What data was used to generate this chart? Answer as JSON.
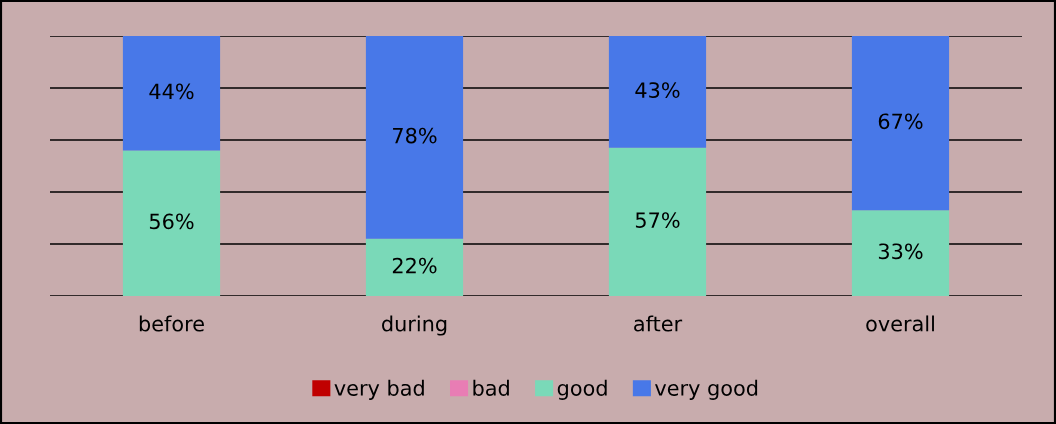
{
  "chart_data": {
    "type": "bar",
    "stacked": true,
    "categories": [
      "before",
      "during",
      "after",
      "overall"
    ],
    "series": [
      {
        "name": "very bad",
        "color": "#c00000",
        "values": [
          0,
          0,
          0,
          0
        ],
        "value_labels": [
          null,
          null,
          null,
          null
        ]
      },
      {
        "name": "bad",
        "color": "#e87db4",
        "values": [
          0,
          0,
          0,
          0
        ],
        "value_labels": [
          null,
          null,
          null,
          null
        ]
      },
      {
        "name": "good",
        "color": "#7ad9b8",
        "values": [
          56,
          22,
          57,
          33
        ],
        "value_labels": [
          "56%",
          "22%",
          "57%",
          "33%"
        ]
      },
      {
        "name": "very good",
        "color": "#4878e8",
        "values": [
          44,
          78,
          43,
          67
        ],
        "value_labels": [
          "44%",
          "78%",
          "43%",
          "67%"
        ]
      }
    ],
    "ylim": [
      0,
      100
    ],
    "yticks": [
      {
        "value": 0,
        "label": null
      },
      {
        "value": 20,
        "label": null
      },
      {
        "value": 40,
        "label": null
      },
      {
        "value": 60,
        "label": null
      },
      {
        "value": 80,
        "label": null
      },
      {
        "value": 100,
        "label": null
      }
    ],
    "grid": "y",
    "legend": "bottom",
    "tick_labels": "x"
  }
}
